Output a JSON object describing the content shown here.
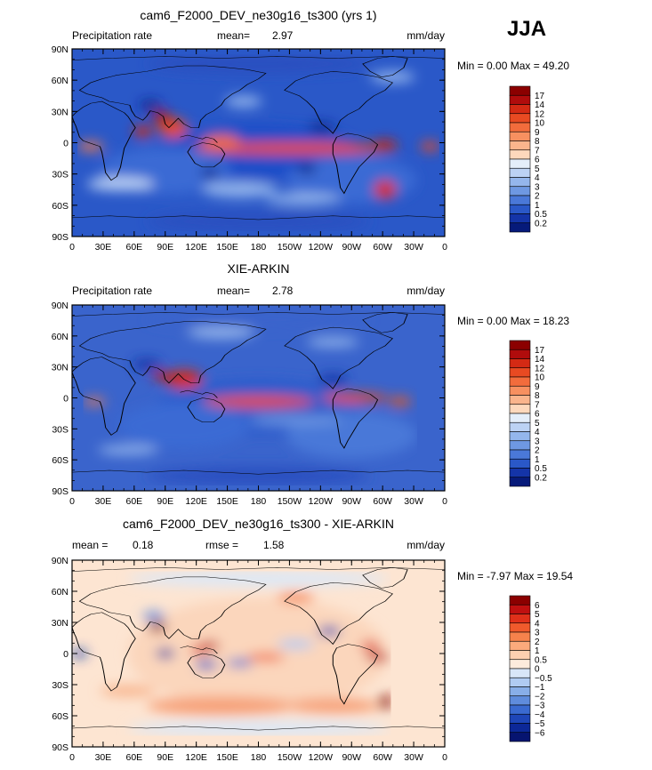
{
  "season": "JJA",
  "chart_data": [
    {
      "type": "heatmap",
      "title": "cam6_F2000_DEV_ne30g16_ts300 (yrs 1)",
      "left_label": "Precipitation rate",
      "stat1_label": "mean=",
      "stat1_value": "2.97",
      "stat2_label": "",
      "stat2_value": "",
      "units": "mm/day",
      "minmax_text": "Min =   0.00 Max =   49.20",
      "min": 0.0,
      "max": 49.2,
      "mean": 2.97,
      "colorbar_labels": [
        "17",
        "14",
        "12",
        "10",
        "9",
        "8",
        "7",
        "6",
        "5",
        "4",
        "3",
        "2",
        "1",
        "0.5",
        "0.2"
      ],
      "colorbar_colors": [
        "#8b0000",
        "#b00c0c",
        "#d42a14",
        "#e84a22",
        "#f26c3c",
        "#f79060",
        "#fab48c",
        "#fdd8bc",
        "#e4eefa",
        "#bcd2f4",
        "#94b6ec",
        "#6e98e2",
        "#4a78d8",
        "#2a58c8",
        "#1434a8",
        "#061a7a"
      ]
    },
    {
      "type": "heatmap",
      "title": "XIE-ARKIN",
      "left_label": "Precipitation rate",
      "stat1_label": "mean=",
      "stat1_value": "2.78",
      "stat2_label": "",
      "stat2_value": "",
      "units": "mm/day",
      "minmax_text": "Min =   0.00 Max =   18.23",
      "min": 0.0,
      "max": 18.23,
      "mean": 2.78,
      "colorbar_labels": [
        "17",
        "14",
        "12",
        "10",
        "9",
        "8",
        "7",
        "6",
        "5",
        "4",
        "3",
        "2",
        "1",
        "0.5",
        "0.2"
      ],
      "colorbar_colors": [
        "#8b0000",
        "#b00c0c",
        "#d42a14",
        "#e84a22",
        "#f26c3c",
        "#f79060",
        "#fab48c",
        "#fdd8bc",
        "#e4eefa",
        "#bcd2f4",
        "#94b6ec",
        "#6e98e2",
        "#4a78d8",
        "#2a58c8",
        "#1434a8",
        "#061a7a"
      ]
    },
    {
      "type": "heatmap",
      "title": "cam6_F2000_DEV_ne30g16_ts300 - XIE-ARKIN",
      "left_label": "",
      "stat1_label": "mean =",
      "stat1_value": "0.18",
      "stat2_label": "rmse =",
      "stat2_value": "1.58",
      "units": "mm/day",
      "minmax_text": "Min =   -7.97 Max =   19.54",
      "min": -7.97,
      "max": 19.54,
      "mean": 0.18,
      "rmse": 1.58,
      "colorbar_labels": [
        "6",
        "5",
        "4",
        "3",
        "2",
        "1",
        "0.5",
        "0",
        "−0.5",
        "−1",
        "−2",
        "−3",
        "−4",
        "−5",
        "−6"
      ],
      "colorbar_colors": [
        "#8b0000",
        "#c01010",
        "#e0301a",
        "#f05a2c",
        "#f6824c",
        "#fbaa7c",
        "#fdd0b0",
        "#fdebdc",
        "#d8e6f8",
        "#b0cbf2",
        "#88aee8",
        "#5f8cdc",
        "#3a6ad0",
        "#1e46b8",
        "#0c2898",
        "#061470"
      ]
    }
  ],
  "x_tick_labels": [
    "0",
    "30E",
    "60E",
    "90E",
    "120E",
    "150E",
    "180",
    "150W",
    "120W",
    "90W",
    "60W",
    "30W",
    "0"
  ],
  "y_tick_labels": [
    "90N",
    "60N",
    "30N",
    "0",
    "30S",
    "60S",
    "90S"
  ]
}
